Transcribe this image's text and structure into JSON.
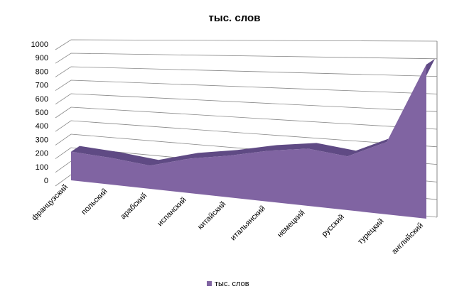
{
  "chart_data": {
    "type": "area3d",
    "title": "тыс. слов",
    "categories": [
      "французский",
      "польский",
      "арабский",
      "испанский",
      "китайский",
      "итальянский",
      "немецкий",
      "русский",
      "турецкий",
      "английский"
    ],
    "series": [
      {
        "name": "тыс. слов",
        "color": "#8064a2",
        "values": [
          210,
          190,
          160,
          230,
          270,
          320,
          350,
          320,
          420,
          870
        ]
      }
    ],
    "ylim": [
      0,
      1000
    ],
    "yticks": [
      0,
      100,
      200,
      300,
      400,
      500,
      600,
      700,
      800,
      900,
      1000
    ],
    "grid": true,
    "legend": "bottom"
  }
}
